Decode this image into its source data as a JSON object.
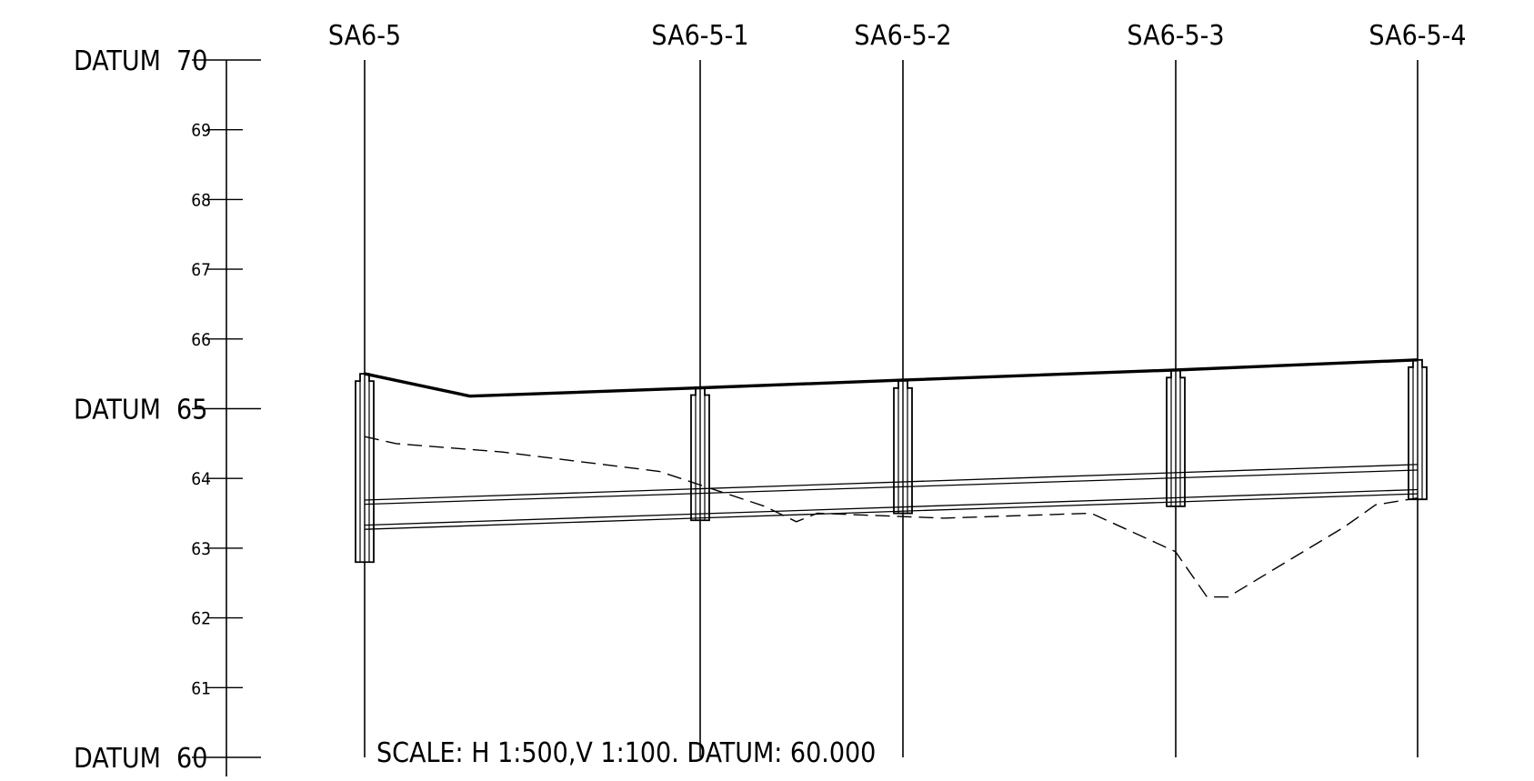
{
  "elevation_scale": {
    "major_labels": [
      {
        "text": "DATUM  70",
        "value": 70
      },
      {
        "text": "DATUM  65",
        "value": 65
      },
      {
        "text": "DATUM  60",
        "value": 60
      }
    ],
    "minor_labels": [
      {
        "text": "69",
        "value": 69
      },
      {
        "text": "68",
        "value": 68
      },
      {
        "text": "67",
        "value": 67
      },
      {
        "text": "66",
        "value": 66
      },
      {
        "text": "64",
        "value": 64
      },
      {
        "text": "63",
        "value": 63
      },
      {
        "text": "62",
        "value": 62
      },
      {
        "text": "61",
        "value": 61
      }
    ]
  },
  "stations": [
    {
      "name": "SA6-5",
      "ground": 65.5,
      "sheet_bottom": 62.8
    },
    {
      "name": "SA6-5-1",
      "ground": 65.3,
      "sheet_bottom": 63.4
    },
    {
      "name": "SA6-5-2",
      "ground": 65.4,
      "sheet_bottom": 63.5
    },
    {
      "name": "SA6-5-3",
      "ground": 65.55,
      "sheet_bottom": 63.6
    },
    {
      "name": "SA6-5-4",
      "ground": 65.7,
      "sheet_bottom": 63.7
    }
  ],
  "profiles": {
    "ground_line": [
      [
        0,
        65.5
      ],
      [
        0.1,
        65.18
      ],
      [
        0.32,
        65.3
      ],
      [
        0.51,
        65.41
      ],
      [
        0.78,
        65.56
      ],
      [
        1.0,
        65.7
      ]
    ],
    "dashed_line": [
      [
        0,
        64.6
      ],
      [
        0.03,
        64.5
      ],
      [
        0.13,
        64.38
      ],
      [
        0.28,
        64.1
      ],
      [
        0.38,
        63.6
      ],
      [
        0.41,
        63.38
      ],
      [
        0.43,
        63.5
      ],
      [
        0.55,
        63.43
      ],
      [
        0.69,
        63.5
      ],
      [
        0.77,
        62.95
      ],
      [
        0.8,
        62.3
      ],
      [
        0.82,
        62.3
      ],
      [
        0.93,
        63.3
      ],
      [
        0.96,
        63.62
      ],
      [
        1.0,
        63.72
      ]
    ],
    "pipe_top": [
      [
        0,
        63.69
      ],
      [
        1.0,
        64.2
      ]
    ],
    "pipe_top_inner": [
      [
        0,
        63.63
      ],
      [
        1.0,
        64.12
      ]
    ],
    "pipe_bottom": [
      [
        0,
        63.33
      ],
      [
        1.0,
        63.84
      ]
    ],
    "pipe_bottom_inner": [
      [
        0,
        63.27
      ],
      [
        1.0,
        63.78
      ]
    ]
  },
  "scale_note": "SCALE: H 1:500,V 1:100. DATUM: 60.000"
}
